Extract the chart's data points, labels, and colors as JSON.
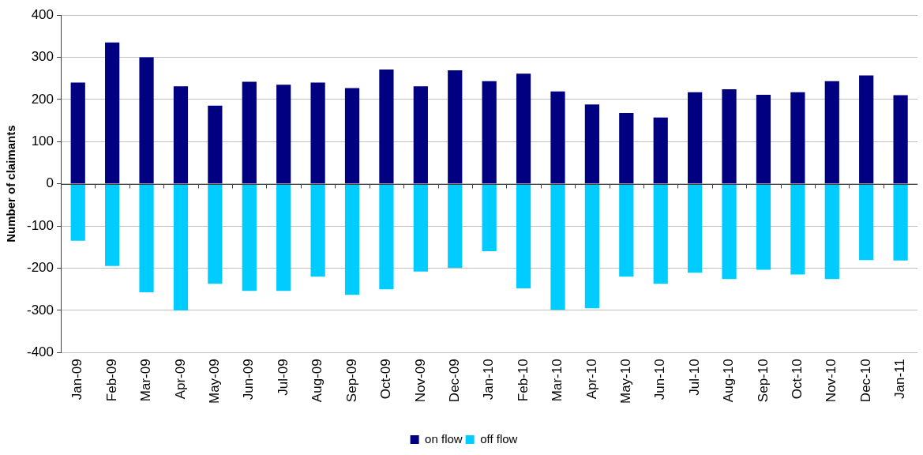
{
  "chart_data": {
    "type": "bar",
    "ylabel": "Number of claimants",
    "categories": [
      "Jan-09",
      "Feb-09",
      "Mar-09",
      "Apr-09",
      "May-09",
      "Jun-09",
      "Jul-09",
      "Aug-09",
      "Sep-09",
      "Oct-09",
      "Nov-09",
      "Dec-09",
      "Jan-10",
      "Feb-10",
      "Mar-10",
      "Apr-10",
      "May-10",
      "Jun-10",
      "Jul-10",
      "Aug-10",
      "Sep-10",
      "Oct-10",
      "Nov-10",
      "Dec-10",
      "Jan-11"
    ],
    "series": [
      {
        "name": "on flow",
        "color": "#000080",
        "values": [
          240,
          335,
          300,
          231,
          185,
          242,
          235,
          240,
          227,
          271,
          231,
          269,
          243,
          261,
          219,
          188,
          168,
          157,
          217,
          224,
          211,
          217,
          243,
          257,
          210
        ]
      },
      {
        "name": "off flow",
        "color": "#00ccff",
        "values": [
          -135,
          -195,
          -257,
          -300,
          -237,
          -254,
          -254,
          -220,
          -263,
          -250,
          -208,
          -199,
          -160,
          -248,
          -299,
          -295,
          -220,
          -237,
          -211,
          -226,
          -204,
          -215,
          -226,
          -181,
          -182
        ]
      }
    ],
    "stacked": true,
    "ylim": [
      -400,
      400
    ],
    "yticks": [
      -400,
      -300,
      -200,
      -100,
      0,
      100,
      200,
      300,
      400
    ],
    "grid": "y",
    "legend": "bottom"
  }
}
